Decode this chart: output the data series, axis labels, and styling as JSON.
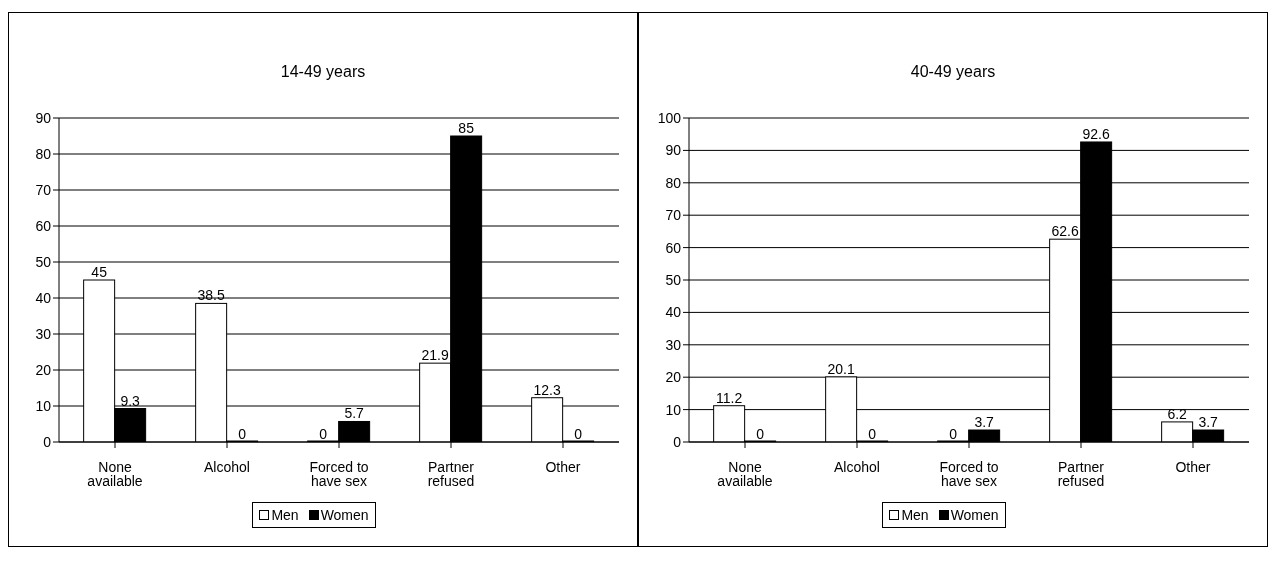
{
  "chart_data": [
    {
      "type": "bar",
      "title": "14-49 years",
      "categories": [
        "None available",
        "Alcohol",
        "Forced to have sex",
        "Partner refused",
        "Other"
      ],
      "series": [
        {
          "name": "Men",
          "color": "#ffffff",
          "values": [
            45,
            38.5,
            0,
            21.9,
            12.3
          ]
        },
        {
          "name": "Women",
          "color": "#000000",
          "values": [
            9.3,
            0,
            5.7,
            85,
            0
          ]
        }
      ],
      "ylim": [
        0,
        90
      ],
      "yticks": [
        0,
        10,
        20,
        30,
        40,
        50,
        60,
        70,
        80,
        90
      ],
      "grid": "y",
      "legend": "bottom",
      "data_labels": true
    },
    {
      "type": "bar",
      "title": "40-49 years",
      "categories": [
        "None available",
        "Alcohol",
        "Forced to have sex",
        "Partner refused",
        "Other"
      ],
      "series": [
        {
          "name": "Men",
          "color": "#ffffff",
          "values": [
            11.2,
            20.1,
            0,
            62.6,
            6.2
          ]
        },
        {
          "name": "Women",
          "color": "#000000",
          "values": [
            0,
            0,
            3.7,
            92.6,
            3.7
          ]
        }
      ],
      "ylim": [
        0,
        100
      ],
      "yticks": [
        0,
        10,
        20,
        30,
        40,
        50,
        60,
        70,
        80,
        90,
        100
      ],
      "grid": "y",
      "legend": "bottom",
      "data_labels": true
    }
  ]
}
